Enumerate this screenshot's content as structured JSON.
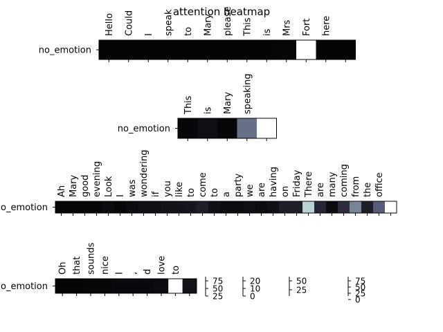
{
  "chart_data": {
    "type": "heatmap",
    "title": "attention heatmap",
    "colormap": "bone",
    "panels": [
      {
        "row_label": "no_emotion",
        "tokens": [
          "Hello",
          "Could",
          "I",
          "speak",
          "to",
          "Mary",
          "please",
          "This",
          "is",
          "Mrs",
          "Fort",
          "here"
        ],
        "weights": [
          2,
          2,
          2,
          2,
          2,
          2,
          2,
          2,
          2,
          3,
          95,
          2,
          2
        ],
        "scale_max": 95
      },
      {
        "row_label": "no_emotion",
        "tokens": [
          "This",
          "is",
          "Mary",
          "speaking"
        ],
        "weights": [
          1,
          2,
          1,
          14,
          30
        ],
        "scale_max": 30
      },
      {
        "row_label": "no_emotion",
        "tokens": [
          "Ah",
          "Mary",
          "good",
          "evening",
          "Look",
          "I",
          "was",
          "wondering",
          "if",
          "you",
          "like",
          "to",
          "come",
          "to",
          "a",
          "party",
          "we",
          "are",
          "having",
          "on",
          "Friday",
          "There",
          "are",
          "many",
          "coming",
          "from",
          "the",
          "office"
        ],
        "weights": [
          2,
          2,
          2,
          2,
          3,
          2,
          3,
          4,
          4,
          5,
          5,
          6,
          8,
          4,
          3,
          3,
          4,
          3,
          4,
          8,
          8,
          48,
          10,
          3,
          12,
          32,
          8,
          24,
          60
        ],
        "scale_max": 60
      },
      {
        "row_label": "no_emotion",
        "tokens": [
          "Oh",
          "that",
          "sounds",
          "nice",
          "I",
          ",",
          "d",
          "love",
          "to"
        ],
        "weights": [
          2,
          2,
          3,
          3,
          4,
          4,
          4,
          5,
          95,
          8
        ],
        "scale_max": 95
      }
    ],
    "colorbars": [
      {
        "ticks": [
          "75",
          "50",
          "25"
        ]
      },
      {
        "ticks": [
          "20",
          "10",
          "0"
        ]
      },
      {
        "ticks": [
          "50",
          "25"
        ]
      },
      {
        "ticks": [
          "75",
          "50",
          "25",
          "0"
        ]
      }
    ]
  }
}
